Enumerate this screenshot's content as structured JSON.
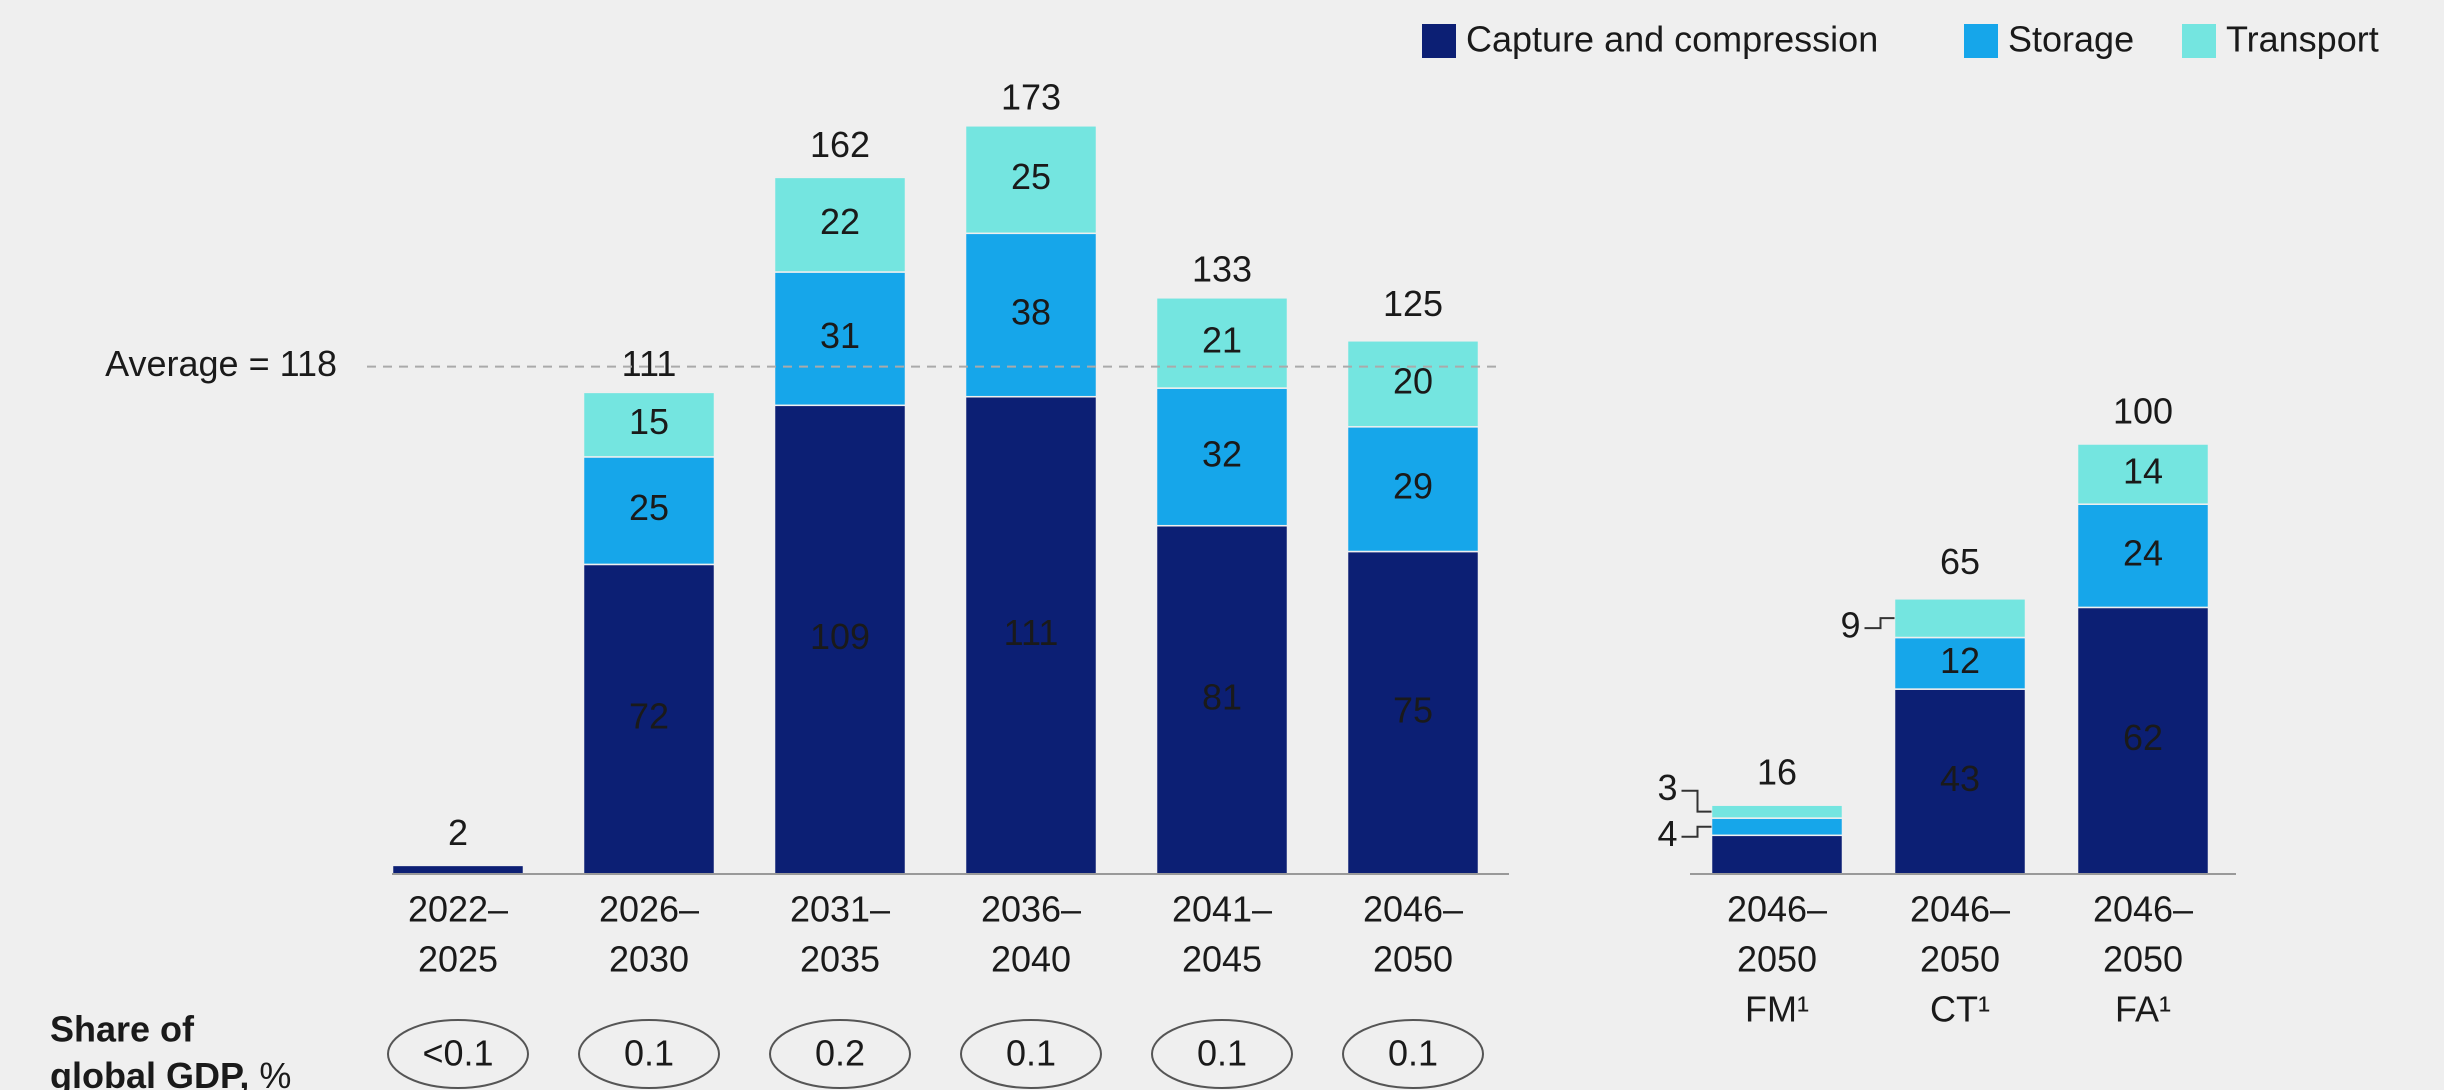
{
  "chart_data": [
    {
      "type": "bar",
      "stacked": true,
      "categories": [
        [
          "2022–",
          "2025"
        ],
        [
          "2026–",
          "2030"
        ],
        [
          "2031–",
          "2035"
        ],
        [
          "2036–",
          "2040"
        ],
        [
          "2041–",
          "2045"
        ],
        [
          "2046–",
          "2050"
        ]
      ],
      "series": [
        {
          "name": "Capture and compression",
          "color": "#0c1f74",
          "values": [
            2,
            72,
            109,
            111,
            81,
            75
          ]
        },
        {
          "name": "Storage",
          "color": "#16a6ea",
          "values": [
            null,
            25,
            31,
            38,
            32,
            29
          ]
        },
        {
          "name": "Transport",
          "color": "#74e5e0",
          "values": [
            null,
            15,
            22,
            25,
            21,
            20
          ]
        }
      ],
      "totals": [
        2,
        111,
        162,
        173,
        133,
        125
      ],
      "average": {
        "value": 118,
        "label": "Average = 118"
      },
      "ylim": [
        0,
        180
      ],
      "gdp_share": {
        "label": [
          "Share of",
          "global GDP,",
          "%"
        ],
        "values": [
          "<0.1",
          "0.1",
          "0.2",
          "0.1",
          "0.1",
          "0.1"
        ]
      }
    },
    {
      "type": "bar",
      "stacked": true,
      "categories": [
        [
          "2046–",
          "2050",
          "FM¹"
        ],
        [
          "2046–",
          "2050",
          "CT¹"
        ],
        [
          "2046–",
          "2050",
          "FA¹"
        ]
      ],
      "series": [
        {
          "color": "#0c1f74",
          "values": [
            9,
            43,
            62
          ]
        },
        {
          "color": "#16a6ea",
          "values": [
            4,
            12,
            24
          ]
        },
        {
          "color": "#74e5e0",
          "values": [
            3,
            9,
            14
          ]
        }
      ],
      "totals": [
        16,
        65,
        100
      ],
      "ylim": [
        0,
        180
      ]
    }
  ]
}
